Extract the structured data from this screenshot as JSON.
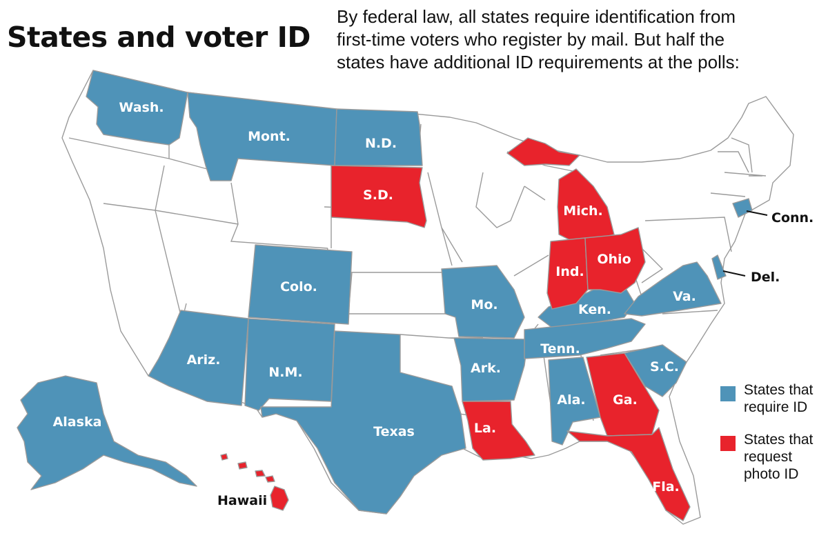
{
  "title": "States and voter ID",
  "intro_lines": [
    "By federal law, all states require identification from",
    "first-time voters who register by mail. But half the",
    "states have additional ID requirements at the polls:"
  ],
  "colors": {
    "require_id": "#4f93b8",
    "request_photo_id": "#e8232c",
    "no_requirement": "#ffffff",
    "border": "#9a9a9a"
  },
  "legend": [
    {
      "key": "require_id",
      "lines": [
        "States that",
        "require ID"
      ]
    },
    {
      "key": "request_photo_id",
      "lines": [
        "States that",
        "request",
        "photo ID"
      ]
    }
  ],
  "states": {
    "wa": {
      "label": "Wash.",
      "category": "require_id"
    },
    "mt": {
      "label": "Mont.",
      "category": "require_id"
    },
    "nd": {
      "label": "N.D.",
      "category": "require_id"
    },
    "sd": {
      "label": "S.D.",
      "category": "request_photo_id"
    },
    "co": {
      "label": "Colo.",
      "category": "require_id"
    },
    "az": {
      "label": "Ariz.",
      "category": "require_id"
    },
    "nm": {
      "label": "N.M.",
      "category": "require_id"
    },
    "tx": {
      "label": "Texas",
      "category": "require_id"
    },
    "mo": {
      "label": "Mo.",
      "category": "require_id"
    },
    "ar": {
      "label": "Ark.",
      "category": "require_id"
    },
    "la": {
      "label": "La.",
      "category": "request_photo_id"
    },
    "mi": {
      "label": "Mich.",
      "category": "request_photo_id"
    },
    "in": {
      "label": "Ind.",
      "category": "request_photo_id"
    },
    "oh": {
      "label": "Ohio",
      "category": "request_photo_id"
    },
    "ky": {
      "label": "Ken.",
      "category": "require_id"
    },
    "tn": {
      "label": "Tenn.",
      "category": "require_id"
    },
    "va": {
      "label": "Va.",
      "category": "require_id"
    },
    "al": {
      "label": "Ala.",
      "category": "require_id"
    },
    "ga": {
      "label": "Ga.",
      "category": "request_photo_id"
    },
    "sc": {
      "label": "S.C.",
      "category": "require_id"
    },
    "fl": {
      "label": "Fla.",
      "category": "request_photo_id"
    },
    "ct": {
      "label": "Conn.",
      "category": "require_id"
    },
    "de": {
      "label": "Del.",
      "category": "require_id"
    },
    "ak": {
      "label": "Alaska",
      "category": "require_id"
    },
    "hi": {
      "label": "Hawaii",
      "category": "request_photo_id"
    }
  }
}
